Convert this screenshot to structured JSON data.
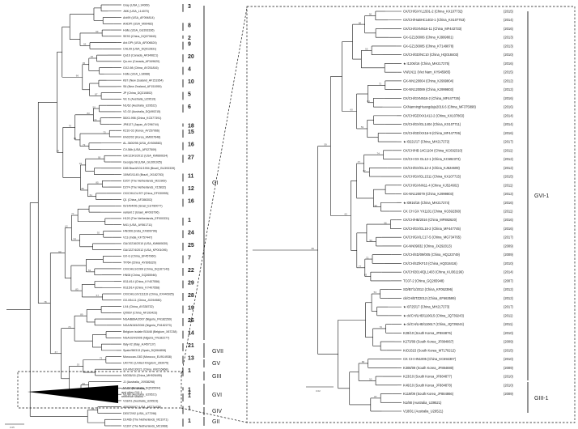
{
  "left_tree": {
    "leaves": [
      {
        "label": "Gray (USA_L14069)",
        "clade": "3"
      },
      {
        "label": "JMK (USA_L14070)",
        "clade": ""
      },
      {
        "label": "Ark99 (USA_AF094814)",
        "clade": ""
      },
      {
        "label": "ArkDPI (USA_M99482)",
        "clade": "8"
      },
      {
        "label": "Holte (USA_GU393336)",
        "clade": ""
      },
      {
        "label": "SE93 (China_DQ070840)",
        "clade": "2"
      },
      {
        "label": "Ark DPI (USA_AF006624)",
        "clade": "9"
      },
      {
        "label": "CAL99 (USA_DQ912831)",
        "clade": ""
      },
      {
        "label": "Qu16 (Canada_AF349621)",
        "clade": "20"
      },
      {
        "label": "Qu-mv (Canada_AF349620)",
        "clade": ""
      },
      {
        "label": "GX2-98 (China_AY251816)",
        "clade": "4"
      },
      {
        "label": "Holte (USA_L18988)",
        "clade": ""
      },
      {
        "label": "K87 (New Zealand_AF151954)",
        "clade": "10"
      },
      {
        "label": "S6 (New Zealand_AF151959)",
        "clade": ""
      },
      {
        "label": "JP (China_DQ310802)",
        "clade": "5"
      },
      {
        "label": "Vic S (Australia_U29519)",
        "clade": ""
      },
      {
        "label": "N1/62 (Australia_U29522)",
        "clade": "6"
      },
      {
        "label": "V2-02 (Australia_DQ490215)",
        "clade": ""
      },
      {
        "label": "55X3-998 (China_KC577391)",
        "clade": ""
      },
      {
        "label": "JP8127 (Japan_AY296744)",
        "clade": "18"
      },
      {
        "label": "K210-02 (Korea_AY257066)",
        "clade": "15"
      },
      {
        "label": "KA02/02 (Korea_HM007648)",
        "clade": ""
      },
      {
        "label": "AL-3600/98 (USA_AY606563)",
        "clade": "16"
      },
      {
        "label": "CV-56b (USA_AF027509)",
        "clade": ""
      },
      {
        "label": "GA/12341/2012 (USA_KM660634)",
        "clade": "27"
      },
      {
        "label": "Georgia 08 (USA_GU301925)",
        "clade": ""
      },
      {
        "label": "D85 Brazil/101/1994 (Brazil_GU393339)",
        "clade": ""
      },
      {
        "label": "15/MG/1145 (Brazil_JX182783)",
        "clade": "11"
      },
      {
        "label": "D207 (The Netherlands_M21969)",
        "clade": ""
      },
      {
        "label": "D274 (The Netherlands_X15832)",
        "clade": "12"
      },
      {
        "label": "CK/CH/LDL/97I (China_EF030995)",
        "clade": ""
      },
      {
        "label": "Q1 (China_AF286302)",
        "clade": "16"
      },
      {
        "label": "IS/1494/06 (Israel_EU780077)",
        "clade": ""
      },
      {
        "label": "variant 2 (Israel_AF093796)",
        "clade": ""
      },
      {
        "label": "H120 (The Netherlands_EF000331)",
        "clade": "1"
      },
      {
        "label": "M41 (USA_AY561711)",
        "clade": ""
      },
      {
        "label": "HN/306 (India_KF809796)",
        "clade": "24"
      },
      {
        "label": "V13 (India_KF757447)",
        "clade": ""
      },
      {
        "label": "GA/10216/2010 (USA_KM660630)",
        "clade": "25"
      },
      {
        "label": "GA/12274/2012 (USA_KP001095)",
        "clade": ""
      },
      {
        "label": "GX-G (China_EF457960)",
        "clade": "7"
      },
      {
        "label": "TP/64 (China_AY606320)",
        "clade": ""
      },
      {
        "label": "CK/CH/LSC/99I (China_DQ167143)",
        "clade": "22"
      },
      {
        "label": "HN08 (China_GQ265946)",
        "clade": ""
      },
      {
        "label": "I0114/14 (China_KY407556)",
        "clade": "29"
      },
      {
        "label": "I0115/14 (China_KY407558)",
        "clade": ""
      },
      {
        "label": "CK/CH/LGX/111119 (China_KX440925)",
        "clade": "28"
      },
      {
        "label": "GX-NN-11 (China_JX294980)",
        "clade": ""
      },
      {
        "label": "LX4 (China_AY338732)",
        "clade": "19"
      },
      {
        "label": "QXIBV (China_AF193423)",
        "clade": ""
      },
      {
        "label": "NGA/B89A/2007 (Nigeria_FN182269)",
        "clade": "26"
      },
      {
        "label": "NGA/N345/2006 (Nigeria_FN182270)",
        "clade": ""
      },
      {
        "label": "Belgium isolate B1648 (Belgium_X87238)",
        "clade": "14"
      },
      {
        "label": "NGA/324/2006 (Nigeria_FN182277)",
        "clade": ""
      },
      {
        "label": "Italy-02 (Italy_AJ457137)",
        "clade": "21"
      },
      {
        "label": "Spain/98/313 (Spain_DQ064808)",
        "clade": ""
      },
      {
        "label": "Moroccan-G83 (Morocco_EU914938)",
        "clade": "13"
      },
      {
        "label": "UK/7/91 (United Kingdom_Z83975)",
        "clade": ""
      },
      {
        "label": "GX-NN130021 (China_KM216868)",
        "clade": "1"
      },
      {
        "label": "N0036/16 (China_MH926495)",
        "clade": ""
      },
      {
        "label": "JJ (Australia_JX938298)",
        "clade": ""
      },
      {
        "label": "N1/03 (Australia_DQ535594)",
        "clade": "1"
      },
      {
        "label": "N1/88 (Australia_U29521)",
        "clade": "1"
      },
      {
        "label": "V18/91 (Australia_U29523)",
        "clade": ""
      },
      {
        "label": "AR6369/97 (USA_AF274436)",
        "clade": "1"
      },
      {
        "label": "DE072/92 (USA_U77298)",
        "clade": ""
      },
      {
        "label": "D1466 (The Netherlands_M21971)",
        "clade": "1"
      },
      {
        "label": "V1397 (The Netherlands_M21968)",
        "clade": ""
      }
    ],
    "group_labels": [
      "GI",
      "GVII",
      "GV",
      "GIII",
      "GVI",
      "GIV",
      "GII"
    ],
    "collapsed_label": [
      "our six IBV strains",
      "and other GVI-1",
      "reference strains"
    ],
    "scale": "0.05"
  },
  "right_tree": {
    "leaves": [
      {
        "label": "CK/CH/GXYL1501-2 (China_KX107732)",
        "year": "(2015)",
        "star": false
      },
      {
        "label": "CK/CH/HuBHC1402-1 (China_KX107753)",
        "year": "(2014)",
        "star": false
      },
      {
        "label": "CK/CH/GXNN16-11 (China_MF443733)",
        "year": "(2016)",
        "star": false
      },
      {
        "label": "GX-GZ130086 (China_KJ999801)",
        "year": "(2013)",
        "star": false
      },
      {
        "label": "GX-GZ130085 (China_KT149878)",
        "year": "(2013)",
        "star": false
      },
      {
        "label": "CK/CH/GD/NC10 (China_HQ018403)",
        "year": "(2010)",
        "star": false
      },
      {
        "label": "I1206/16 (China_MH217275)",
        "year": "(2016)",
        "star": true
      },
      {
        "label": "VN/LN11 (Viet Nam_KY945985)",
        "year": "(2015)",
        "star": false
      },
      {
        "label": "GX-NN120064 (China_KJ999804)",
        "year": "(2012)",
        "star": false
      },
      {
        "label": "GX-NN120089 (China_KJ999803)",
        "year": "(2012)",
        "star": false
      },
      {
        "label": "CK/CH/GXNN16-2 (China_MF447726)",
        "year": "(2016)",
        "star": false
      },
      {
        "label": "GXNanningHuangdaju2016.6 (China_MF375898)",
        "year": "(2016)",
        "star": false
      },
      {
        "label": "CK/CH/GD/XX1412-2 (China_KX107863)",
        "year": "(2014)",
        "star": false
      },
      {
        "label": "CK/CH/GX/GL1404 (China_KX107711)",
        "year": "(2014)",
        "star": false
      },
      {
        "label": "CK/CH/GD/XX16-9 (China_MF447706)",
        "year": "(2016)",
        "star": false
      },
      {
        "label": "I0221/17 (China_MH217272)",
        "year": "(2017)",
        "star": true
      },
      {
        "label": "CK/CH/HB 14C1104 (China_KC692310)",
        "year": "(2011)",
        "star": false
      },
      {
        "label": "CK/CH GX GL12-1 (China_KC692373)",
        "year": "(2012)",
        "star": false
      },
      {
        "label": "CK/CH/GX/GL12-4 (China_KJ524609)",
        "year": "(2012)",
        "star": false
      },
      {
        "label": "CK/CH/GX/GL1511 (China_KX107715)",
        "year": "(2015)",
        "star": false
      },
      {
        "label": "CK/CH/GXNN11-4 (China_KJ524602)",
        "year": "(2011)",
        "star": false
      },
      {
        "label": "GX-NN120079 (China_KJ999803)",
        "year": "(2012)",
        "star": false
      },
      {
        "label": "I0916/16 (China_MH217274)",
        "year": "(2016)",
        "star": true
      },
      {
        "label": "CK CH GX YX1101 (China_KC692360)",
        "year": "(2011)",
        "star": false
      },
      {
        "label": "CK/CH/HB/2016 (China_MF882620)",
        "year": "(2016)",
        "star": false
      },
      {
        "label": "CK/CH/GX/GL16-2 (China_MF447745)",
        "year": "(2016)",
        "star": false
      },
      {
        "label": "CK/CH/GX/LC17-5 (China_MG734765)",
        "year": "(2017)",
        "star": false
      },
      {
        "label": "GX-NN09032 (China_JX292013)",
        "year": "(2009)",
        "star": false
      },
      {
        "label": "CK/CH/SD/09/005 (China_HQ123749)",
        "year": "(2009)",
        "star": false
      },
      {
        "label": "CK/CH/SZ/KF10 (China_HQ018416)",
        "year": "(2010)",
        "star": false
      },
      {
        "label": "CK/CH/2014/QL1403 (China_KU361196)",
        "year": "(2014)",
        "star": false
      },
      {
        "label": "TC07-2 (China_GQ265948)",
        "year": "(2007)",
        "star": false
      },
      {
        "label": "SD/B7/1/2012 (China_KF052396)",
        "year": "(2012)",
        "star": false
      },
      {
        "label": "ck/CH/BTZ2012 (China_KF663599)",
        "year": "(2012)",
        "star": false
      },
      {
        "label": "I0725/17 (China_MH217273)",
        "year": "(2017)",
        "star": true
      },
      {
        "label": "ck/CH/LHB/110615 (China_JQ739243)",
        "year": "(2011)",
        "star": true
      },
      {
        "label": "ck/CH/LHB/110617 (China_JQ739244)",
        "year": "(2011)",
        "star": true
      },
      {
        "label": "K28/10 (South Korea_JF884876)",
        "year": "(2010)",
        "star": false
      },
      {
        "label": "K273/09 (South Korea_JF884867)",
        "year": "(2009)",
        "star": false
      },
      {
        "label": "KrD1515 (South Korea_MT178212)",
        "year": "(2015)",
        "star": false
      },
      {
        "label": "CK CH HN1005 (China_KC692307)",
        "year": "(2010)",
        "star": false
      },
      {
        "label": "K308/09 (South Korea_JF884880)",
        "year": "(2009)",
        "star": false
      },
      {
        "label": "K23/10 (South Korea_JF884877)",
        "year": "(2010)",
        "star": false
      },
      {
        "label": "K46/10 (South Korea_JF884878)",
        "year": "(2010)",
        "star": false
      },
      {
        "label": "K119/09 (South Korea_JF884866)",
        "year": "(2009)",
        "star": false
      },
      {
        "label": "N1/88 (Australia_U29521)",
        "year": "",
        "star": false
      },
      {
        "label": "V18/91 (Australia_U29521)",
        "year": "",
        "star": false
      }
    ],
    "group_labels": [
      "GVI-1",
      "GIII-1"
    ],
    "scale": "0.02"
  }
}
